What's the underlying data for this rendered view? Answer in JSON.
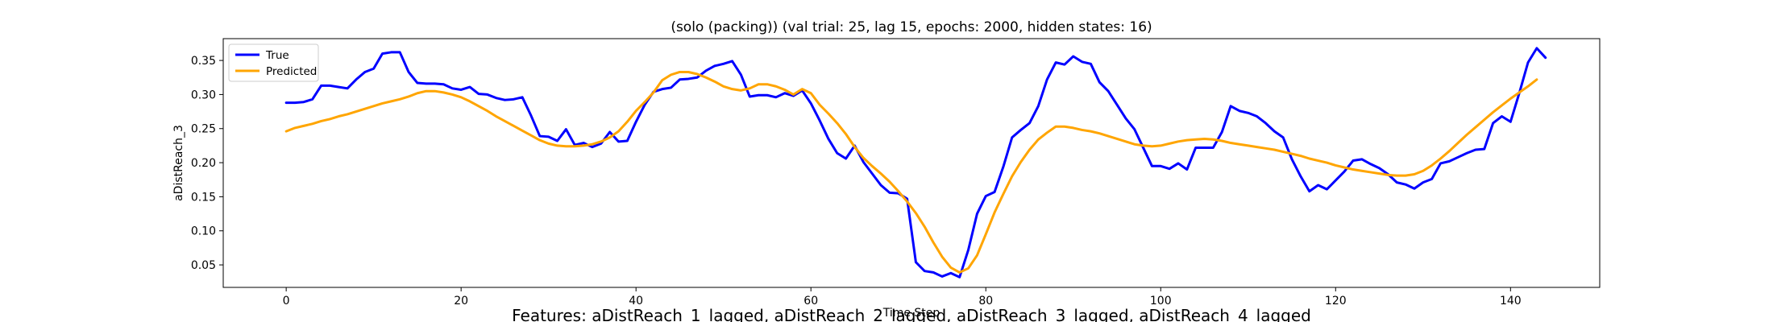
{
  "chart_data": {
    "type": "line",
    "title": "(solo (packing)) (val trial: 25, lag 15, epochs: 2000, hidden states: 16)",
    "xlabel": "Time Step",
    "ylabel": "aDistReach_3",
    "footer": "Features: aDistReach_1_lagged, aDistReach_2_lagged, aDistReach_3_lagged, aDistReach_4_lagged",
    "xlim": [
      -7.2,
      150.2
    ],
    "ylim": [
      0.017,
      0.382
    ],
    "xticks": [
      0,
      20,
      40,
      60,
      80,
      100,
      120,
      140
    ],
    "yticks": [
      0.05,
      0.1,
      0.15,
      0.2,
      0.25,
      0.3,
      0.35
    ],
    "ytick_labels": [
      "0.05",
      "0.10",
      "0.15",
      "0.20",
      "0.25",
      "0.30",
      "0.35"
    ],
    "legend_position": "upper-left",
    "series": [
      {
        "name": "True",
        "color": "#0000ff",
        "values": [
          0.288,
          0.288,
          0.289,
          0.293,
          0.313,
          0.313,
          0.311,
          0.309,
          0.322,
          0.333,
          0.338,
          0.36,
          0.362,
          0.362,
          0.333,
          0.317,
          0.316,
          0.316,
          0.315,
          0.309,
          0.307,
          0.311,
          0.301,
          0.3,
          0.295,
          0.292,
          0.293,
          0.296,
          0.269,
          0.239,
          0.238,
          0.232,
          0.249,
          0.226,
          0.229,
          0.223,
          0.228,
          0.245,
          0.231,
          0.232,
          0.26,
          0.285,
          0.304,
          0.308,
          0.31,
          0.322,
          0.323,
          0.325,
          0.335,
          0.342,
          0.345,
          0.349,
          0.329,
          0.297,
          0.299,
          0.299,
          0.296,
          0.302,
          0.298,
          0.306,
          0.287,
          0.262,
          0.235,
          0.214,
          0.206,
          0.225,
          0.201,
          0.184,
          0.167,
          0.156,
          0.155,
          0.147,
          0.054,
          0.041,
          0.039,
          0.033,
          0.038,
          0.032,
          0.072,
          0.125,
          0.151,
          0.157,
          0.194,
          0.237,
          0.248,
          0.258,
          0.283,
          0.322,
          0.347,
          0.344,
          0.356,
          0.348,
          0.345,
          0.318,
          0.305,
          0.285,
          0.265,
          0.249,
          0.222,
          0.195,
          0.195,
          0.191,
          0.199,
          0.19,
          0.222,
          0.222,
          0.222,
          0.245,
          0.283,
          0.276,
          0.273,
          0.268,
          0.258,
          0.246,
          0.237,
          0.205,
          0.18,
          0.158,
          0.167,
          0.161,
          0.174,
          0.187,
          0.203,
          0.205,
          0.198,
          0.192,
          0.183,
          0.171,
          0.168,
          0.162,
          0.171,
          0.176,
          0.199,
          0.202,
          0.208,
          0.214,
          0.219,
          0.22,
          0.258,
          0.268,
          0.26,
          0.302,
          0.347,
          0.368,
          0.354
        ]
      },
      {
        "name": "Predicted",
        "color": "#ffa500",
        "values": [
          0.246,
          0.251,
          0.254,
          0.257,
          0.261,
          0.264,
          0.268,
          0.271,
          0.275,
          0.279,
          0.283,
          0.287,
          0.29,
          0.293,
          0.297,
          0.302,
          0.305,
          0.305,
          0.303,
          0.3,
          0.296,
          0.29,
          0.283,
          0.276,
          0.268,
          0.261,
          0.254,
          0.247,
          0.24,
          0.233,
          0.228,
          0.225,
          0.224,
          0.224,
          0.225,
          0.227,
          0.231,
          0.237,
          0.246,
          0.26,
          0.276,
          0.289,
          0.303,
          0.321,
          0.329,
          0.333,
          0.333,
          0.33,
          0.325,
          0.319,
          0.312,
          0.308,
          0.306,
          0.309,
          0.315,
          0.315,
          0.312,
          0.307,
          0.3,
          0.308,
          0.302,
          0.285,
          0.272,
          0.258,
          0.242,
          0.223,
          0.207,
          0.195,
          0.184,
          0.172,
          0.158,
          0.143,
          0.126,
          0.106,
          0.083,
          0.062,
          0.046,
          0.039,
          0.045,
          0.064,
          0.095,
          0.127,
          0.154,
          0.18,
          0.201,
          0.219,
          0.234,
          0.244,
          0.253,
          0.253,
          0.251,
          0.248,
          0.246,
          0.243,
          0.239,
          0.235,
          0.231,
          0.227,
          0.225,
          0.224,
          0.225,
          0.228,
          0.231,
          0.233,
          0.234,
          0.235,
          0.234,
          0.232,
          0.229,
          0.227,
          0.225,
          0.223,
          0.221,
          0.219,
          0.216,
          0.213,
          0.21,
          0.206,
          0.203,
          0.2,
          0.196,
          0.193,
          0.19,
          0.188,
          0.186,
          0.184,
          0.182,
          0.181,
          0.181,
          0.183,
          0.188,
          0.196,
          0.206,
          0.217,
          0.229,
          0.241,
          0.252,
          0.263,
          0.274,
          0.284,
          0.294,
          0.303,
          0.312,
          0.322
        ]
      }
    ]
  }
}
